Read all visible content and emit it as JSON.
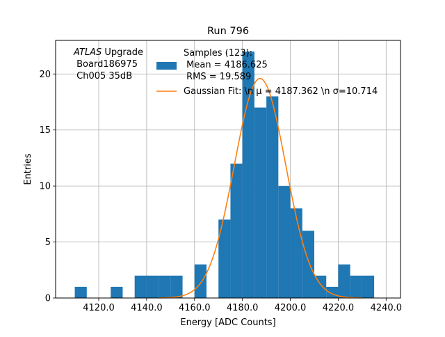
{
  "chart_data": {
    "type": "bar",
    "title": "Run 796",
    "xlabel": "Energy [ADC Counts]",
    "ylabel": "Entries",
    "xlim": [
      4102,
      4246
    ],
    "ylim": [
      0,
      23
    ],
    "grid": true,
    "xticks": [
      4120,
      4140,
      4160,
      4180,
      4200,
      4220,
      4240
    ],
    "xtick_labels": [
      "4120.0",
      "4140.0",
      "4160.0",
      "4180.0",
      "4200.0",
      "4220.0",
      "4240.0"
    ],
    "yticks": [
      0,
      5,
      10,
      15,
      20
    ],
    "ytick_labels": [
      "0",
      "5",
      "10",
      "15",
      "20"
    ],
    "histogram": {
      "name": "Samples (123):\n Mean = 4186.625\n RMS = 19.589",
      "color": "#1f77b4",
      "bin_edges": [
        4110,
        4115,
        4120,
        4125,
        4130,
        4135,
        4140,
        4145,
        4150,
        4155,
        4160,
        4165,
        4170,
        4175,
        4180,
        4185,
        4190,
        4195,
        4200,
        4205,
        4210,
        4215,
        4220,
        4225,
        4230,
        4235
      ],
      "counts": [
        1,
        0,
        0,
        1,
        0,
        2,
        2,
        2,
        2,
        0,
        3,
        0,
        7,
        12,
        22,
        17,
        18,
        10,
        8,
        6,
        2,
        1,
        3,
        2,
        2
      ]
    },
    "fit": {
      "name": "Gaussian Fit: \\n $\\mu$ = 4187.362 \\n $\\sigma$=10.714",
      "color": "#ff7f0e",
      "mu": 4187.362,
      "sigma": 10.714,
      "amplitude": 19.6,
      "range": [
        4145,
        4230
      ]
    },
    "annotation": {
      "lines": [
        "ATLAS Upgrade",
        " Board186975",
        " Ch005 35dB"
      ],
      "italic_word": "ATLAS"
    },
    "legend": {
      "placement": "top-center",
      "hist_lines": [
        "Samples (123):",
        " Mean = 4186.625",
        " RMS = 19.589"
      ],
      "fit_label": "Gaussian Fit: \\n μ = 4187.362 \\n σ=10.714"
    }
  }
}
